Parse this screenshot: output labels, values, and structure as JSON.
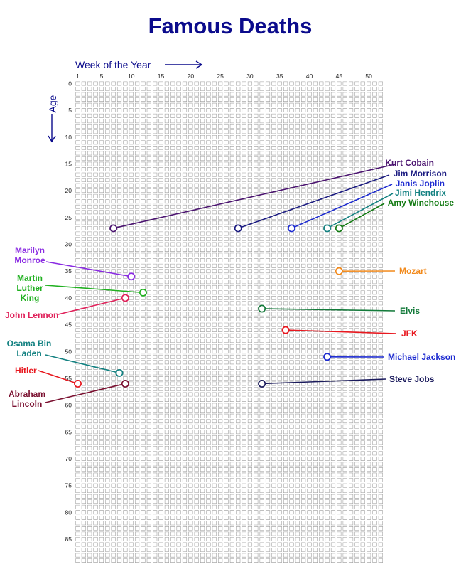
{
  "chart_data": {
    "type": "scatter",
    "title": "Famous Deaths",
    "xlabel": "Week of the Year",
    "ylabel": "Age",
    "xlim": [
      1,
      52
    ],
    "ylim": [
      0,
      89
    ],
    "x_ticks": [
      "1",
      "5",
      "10",
      "15",
      "20",
      "25",
      "30",
      "35",
      "40",
      "45",
      "50"
    ],
    "y_ticks": [
      "0",
      "5",
      "10",
      "15",
      "20",
      "25",
      "30",
      "35",
      "40",
      "45",
      "50",
      "55",
      "60",
      "65",
      "70",
      "75",
      "80",
      "85"
    ],
    "grid": true,
    "points": [
      {
        "name": "Kurt Cobain",
        "week": 7,
        "age": 27,
        "color": "#4b1470",
        "label_side": "right"
      },
      {
        "name": "Jim Morrison",
        "week": 28,
        "age": 27,
        "color": "#1a1a80",
        "label_side": "right"
      },
      {
        "name": "Janis Joplin",
        "week": 37,
        "age": 27,
        "color": "#1c2ad0",
        "label_side": "right"
      },
      {
        "name": "Jimi Hendrix",
        "week": 43,
        "age": 27,
        "color": "#138181",
        "label_side": "right"
      },
      {
        "name": "Amy Winehouse",
        "week": 45,
        "age": 27,
        "color": "#137a13",
        "label_side": "right"
      },
      {
        "name": "Marilyn Monroe",
        "week": 10,
        "age": 36,
        "color": "#8a2be2",
        "label_side": "left"
      },
      {
        "name": "Mozart",
        "week": 45,
        "age": 35,
        "color": "#f28a1c",
        "label_side": "right"
      },
      {
        "name": "Martin Luther King",
        "week": 12,
        "age": 39,
        "color": "#20b020",
        "label_side": "left"
      },
      {
        "name": "John Lennon",
        "week": 9,
        "age": 40,
        "color": "#e0215a",
        "label_side": "left"
      },
      {
        "name": "Elvis",
        "week": 32,
        "age": 42,
        "color": "#137a3a",
        "label_side": "right"
      },
      {
        "name": "JFK",
        "week": 36,
        "age": 46,
        "color": "#e8181f",
        "label_side": "right"
      },
      {
        "name": "Michael Jackson",
        "week": 43,
        "age": 51,
        "color": "#1c2ad0",
        "label_side": "right"
      },
      {
        "name": "Osama Bin Laden",
        "week": 8,
        "age": 54,
        "color": "#138181",
        "label_side": "left"
      },
      {
        "name": "Hitler",
        "week": 1,
        "age": 56,
        "color": "#e8181f",
        "label_side": "left"
      },
      {
        "name": "Steve Jobs",
        "week": 32,
        "age": 56,
        "color": "#1a1a5c",
        "label_side": "right"
      },
      {
        "name": "Abraham Lincoln",
        "week": 9,
        "age": 56,
        "color": "#7a1030",
        "label_side": "left"
      }
    ]
  }
}
